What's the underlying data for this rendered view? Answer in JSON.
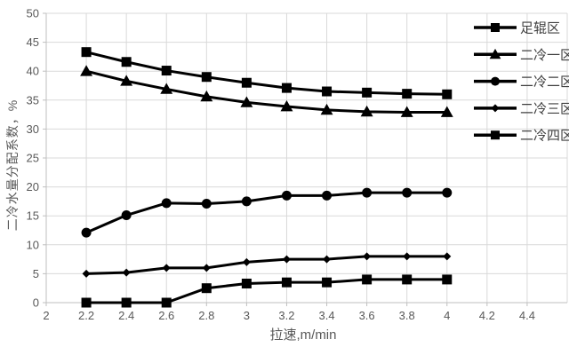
{
  "chart_data": {
    "type": "line",
    "title": "",
    "xlabel": "拉速,m/min",
    "ylabel": "二冷水量分配系数，%",
    "x": [
      2.2,
      2.4,
      2.6,
      2.8,
      3.0,
      3.2,
      3.4,
      3.6,
      3.8,
      4.0
    ],
    "series": [
      {
        "name": "足辊区",
        "marker": "square",
        "values": [
          43.3,
          41.6,
          40.1,
          39.0,
          38.0,
          37.1,
          36.5,
          36.3,
          36.1,
          36.0
        ]
      },
      {
        "name": "二冷一区",
        "marker": "triangle",
        "values": [
          40.0,
          38.3,
          36.9,
          35.6,
          34.6,
          33.9,
          33.3,
          33.0,
          32.9,
          32.9
        ]
      },
      {
        "name": "二冷二区",
        "marker": "circle",
        "values": [
          12.1,
          15.1,
          17.2,
          17.1,
          17.5,
          18.5,
          18.5,
          19.0,
          19.0,
          19.0
        ]
      },
      {
        "name": "二冷三区",
        "marker": "diamond",
        "values": [
          5.0,
          5.2,
          6.0,
          6.0,
          7.0,
          7.5,
          7.5,
          8.0,
          8.0,
          8.0
        ]
      },
      {
        "name": "二冷四区",
        "marker": "square",
        "values": [
          0.0,
          0.0,
          0.0,
          2.5,
          3.3,
          3.5,
          3.5,
          4.0,
          4.0,
          4.0
        ]
      }
    ],
    "xlim": [
      2.0,
      4.6
    ],
    "ylim": [
      0,
      50
    ],
    "xticks": [
      2,
      2.2,
      2.4,
      2.6,
      2.8,
      3,
      3.2,
      3.4,
      3.6,
      3.8,
      4,
      4.2,
      4.4
    ],
    "yticks": [
      0,
      5,
      10,
      15,
      20,
      25,
      30,
      35,
      40,
      45,
      50
    ],
    "grid": true,
    "legend_position": "top-right",
    "colors": {
      "series": "#000000",
      "grid": "#d9d9d9",
      "axis": "#bfbfbf",
      "tick_label": "#595959",
      "legend_text": "#3f3f3f"
    }
  }
}
